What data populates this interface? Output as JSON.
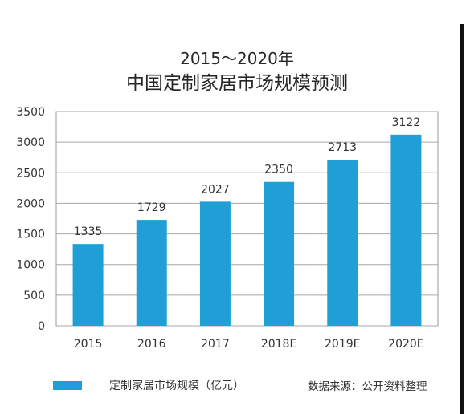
{
  "chart_data": {
    "type": "bar",
    "title_line1": "2015～2020年",
    "title_line2": "中国定制家居市场规模预测",
    "categories": [
      "2015",
      "2016",
      "2017",
      "2018E",
      "2019E",
      "2020E"
    ],
    "values": [
      1335,
      1729,
      2027,
      2350,
      2713,
      3122
    ],
    "data_labels": [
      "1335",
      "1729",
      "2027",
      "2350",
      "2713",
      "3122"
    ],
    "series": [
      {
        "name": "定制家居市场规模（亿元）",
        "values": [
          1335,
          1729,
          2027,
          2350,
          2713,
          3122
        ]
      }
    ],
    "ylim": [
      0,
      3500
    ],
    "yticks": [
      0,
      500,
      1000,
      1500,
      2000,
      2500,
      3000,
      3500
    ],
    "grid": true,
    "legend_position": "bottom-left",
    "bar_color": "#1f9fd6"
  },
  "source_note": "数据来源：公开资料整理"
}
